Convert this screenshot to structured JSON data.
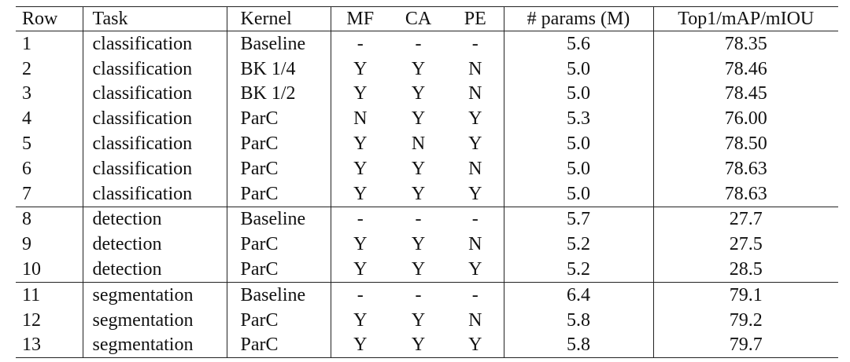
{
  "table": {
    "header": [
      "Row",
      "Task",
      "Kernel",
      "MF",
      "CA",
      "PE",
      "# params (M)",
      "Top1/mAP/mIOU"
    ],
    "rows": [
      [
        "1",
        "classification",
        "Baseline",
        "-",
        "-",
        "-",
        "5.6",
        "78.35"
      ],
      [
        "2",
        "classification",
        "BK 1/4",
        "Y",
        "Y",
        "N",
        "5.0",
        "78.46"
      ],
      [
        "3",
        "classification",
        "BK 1/2",
        "Y",
        "Y",
        "N",
        "5.0",
        "78.45"
      ],
      [
        "4",
        "classification",
        "ParC",
        "N",
        "Y",
        "Y",
        "5.3",
        "76.00"
      ],
      [
        "5",
        "classification",
        "ParC",
        "Y",
        "N",
        "Y",
        "5.0",
        "78.50"
      ],
      [
        "6",
        "classification",
        "ParC",
        "Y",
        "Y",
        "N",
        "5.0",
        "78.63"
      ],
      [
        "7",
        "classification",
        "ParC",
        "Y",
        "Y",
        "Y",
        "5.0",
        "78.63"
      ],
      [
        "8",
        "detection",
        "Baseline",
        "-",
        "-",
        "-",
        "5.7",
        "27.7"
      ],
      [
        "9",
        "detection",
        "ParC",
        "Y",
        "Y",
        "N",
        "5.2",
        "27.5"
      ],
      [
        "10",
        "detection",
        "ParC",
        "Y",
        "Y",
        "Y",
        "5.2",
        "28.5"
      ],
      [
        "11",
        "segmentation",
        "Baseline",
        "-",
        "-",
        "-",
        "6.4",
        "79.1"
      ],
      [
        "12",
        "segmentation",
        "ParC",
        "Y",
        "Y",
        "N",
        "5.8",
        "79.2"
      ],
      [
        "13",
        "segmentation",
        "ParC",
        "Y",
        "Y",
        "Y",
        "5.8",
        "79.7"
      ]
    ]
  }
}
